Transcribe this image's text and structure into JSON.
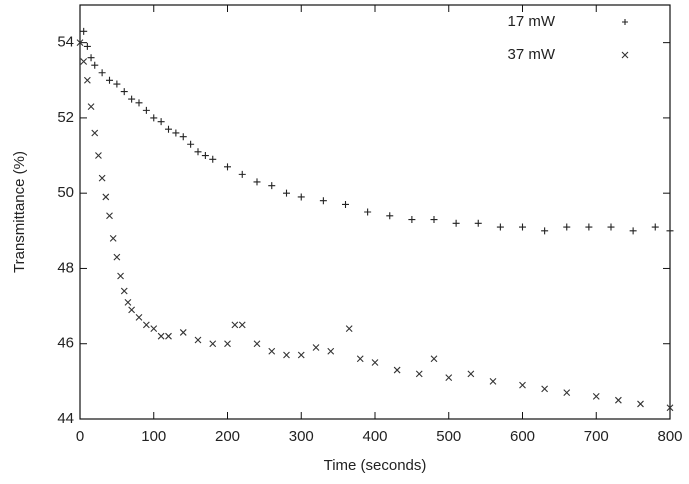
{
  "chart_data": {
    "type": "scatter",
    "xlabel": "Time (seconds)",
    "ylabel": "Transmittance (%)",
    "xlim": [
      0,
      800
    ],
    "xticks": [
      0,
      100,
      200,
      300,
      400,
      500,
      600,
      700,
      800
    ],
    "ylim": [
      44,
      55
    ],
    "yticks": [
      44,
      46,
      48,
      50,
      52,
      54
    ],
    "legend": "upper right",
    "series": [
      {
        "name": "17 mW",
        "color": "#222222",
        "marker": "+",
        "x": [
          5,
          10,
          15,
          20,
          30,
          40,
          50,
          60,
          70,
          80,
          90,
          100,
          110,
          120,
          130,
          140,
          150,
          160,
          170,
          180,
          200,
          220,
          240,
          260,
          280,
          300,
          330,
          360,
          390,
          420,
          450,
          480,
          510,
          540,
          570,
          600,
          630,
          660,
          690,
          720,
          750,
          780,
          800
        ],
        "values": [
          54.3,
          53.9,
          53.6,
          53.4,
          53.2,
          53.0,
          52.9,
          52.7,
          52.5,
          52.4,
          52.2,
          52.0,
          51.9,
          51.7,
          51.6,
          51.5,
          51.3,
          51.1,
          51.0,
          50.9,
          50.7,
          50.5,
          50.3,
          50.2,
          50.0,
          49.9,
          49.8,
          49.7,
          49.5,
          49.4,
          49.3,
          49.3,
          49.2,
          49.2,
          49.1,
          49.1,
          49.0,
          49.1,
          49.1,
          49.1,
          49.0,
          49.1,
          49.0
        ]
      },
      {
        "name": "37 mW",
        "color": "#333333",
        "marker": "x",
        "x": [
          0,
          5,
          10,
          15,
          20,
          25,
          30,
          35,
          40,
          45,
          50,
          55,
          60,
          65,
          70,
          80,
          90,
          100,
          110,
          120,
          140,
          160,
          180,
          200,
          210,
          220,
          240,
          260,
          280,
          300,
          320,
          340,
          365,
          380,
          400,
          430,
          460,
          480,
          500,
          530,
          560,
          600,
          630,
          660,
          700,
          730,
          760,
          800
        ],
        "values": [
          54.0,
          53.5,
          53.0,
          52.3,
          51.6,
          51.0,
          50.4,
          49.9,
          49.4,
          48.8,
          48.3,
          47.8,
          47.4,
          47.1,
          46.9,
          46.7,
          46.5,
          46.4,
          46.2,
          46.2,
          46.3,
          46.1,
          46.0,
          46.0,
          46.5,
          46.5,
          46.0,
          45.8,
          45.7,
          45.7,
          45.9,
          45.8,
          46.4,
          45.6,
          45.5,
          45.3,
          45.2,
          45.6,
          45.1,
          45.2,
          45.0,
          44.9,
          44.8,
          44.7,
          44.6,
          44.5,
          44.4,
          44.3
        ]
      }
    ]
  }
}
